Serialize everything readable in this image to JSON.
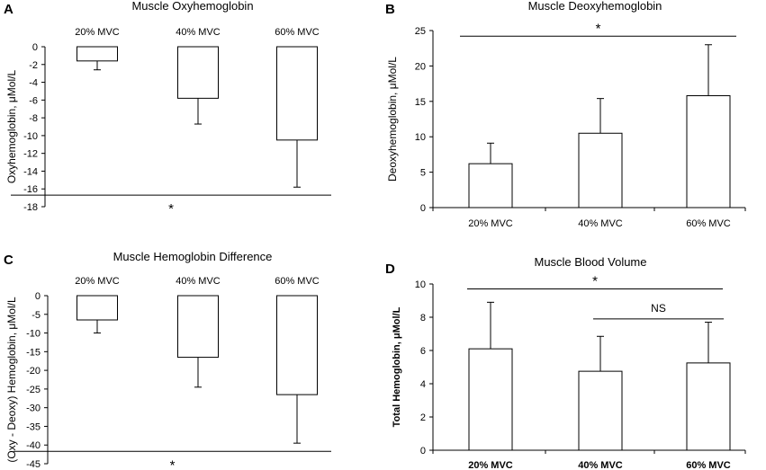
{
  "chart_data": [
    {
      "panel": "A",
      "type": "bar",
      "title": "Muscle Oxyhemoglobin",
      "ylabel": "Oxyhemoglobin, μMol/L",
      "xlabel": "",
      "categories": [
        "20% MVC",
        "40% MVC",
        "60% MVC"
      ],
      "values": [
        -1.6,
        -5.8,
        -10.5
      ],
      "errors": [
        1.0,
        2.9,
        5.3
      ],
      "ylim": [
        -18,
        0
      ],
      "yticks": [
        0,
        -2,
        -4,
        -6,
        -8,
        -10,
        -12,
        -14,
        -16,
        -18
      ],
      "ytick_labels": [
        "0",
        "-2",
        "-4",
        "-6",
        "-8",
        "-10",
        "-12",
        "-14",
        "-16",
        "-18"
      ],
      "significance": [
        {
          "label": "*",
          "from": 0,
          "to": 2,
          "level": -16.7
        }
      ]
    },
    {
      "panel": "B",
      "type": "bar",
      "title": "Muscle Deoxyhemoglobin",
      "ylabel": "Deoxyhemoglobin, μMol/L",
      "xlabel": "",
      "categories": [
        "20% MVC",
        "40% MVC",
        "60% MVC"
      ],
      "values": [
        6.2,
        10.5,
        15.8
      ],
      "errors": [
        2.9,
        4.9,
        7.2
      ],
      "ylim": [
        0,
        25
      ],
      "yticks": [
        0,
        5,
        10,
        15,
        20,
        25
      ],
      "ytick_labels": [
        "0",
        "5",
        "10",
        "15",
        "20",
        "25"
      ],
      "significance": [
        {
          "label": "*",
          "from": 0,
          "to": 2,
          "level": 24.2
        }
      ]
    },
    {
      "panel": "C",
      "type": "bar",
      "title": "Muscle  Hemoglobin Difference",
      "ylabel": "(Oxy - Deoxy) Hemoglobin, μMol/L",
      "xlabel": "",
      "categories": [
        "20% MVC",
        "40% MVC",
        "60% MVC"
      ],
      "values": [
        -6.5,
        -16.5,
        -26.5
      ],
      "errors": [
        3.5,
        8.0,
        13.0
      ],
      "ylim": [
        -45,
        0
      ],
      "yticks": [
        0,
        -5,
        -10,
        -15,
        -20,
        -25,
        -30,
        -35,
        -40,
        -45
      ],
      "ytick_labels": [
        "0",
        "-5",
        "-10",
        "-15",
        "-20",
        "-25",
        "-30",
        "-35",
        "-40",
        "-45"
      ],
      "significance": [
        {
          "label": "*",
          "from": 0,
          "to": 2,
          "level": -41.7
        }
      ]
    },
    {
      "panel": "D",
      "type": "bar",
      "title": "Muscle Blood Volume",
      "ylabel": "Total Hemoglobin, μMol/L",
      "xlabel": "",
      "categories": [
        "20% MVC",
        "40% MVC",
        "60% MVC"
      ],
      "values": [
        6.1,
        4.75,
        5.25
      ],
      "errors": [
        2.8,
        2.1,
        2.45
      ],
      "ylim": [
        0,
        10
      ],
      "yticks": [
        0,
        2,
        4,
        6,
        8,
        10
      ],
      "ytick_labels": [
        "0",
        "2",
        "4",
        "6",
        "8",
        "10"
      ],
      "significance": [
        {
          "label": "*",
          "from": 0,
          "to": 2,
          "level": 9.7
        },
        {
          "label": "NS",
          "from": 1,
          "to": 2,
          "level": 7.9
        }
      ]
    }
  ]
}
